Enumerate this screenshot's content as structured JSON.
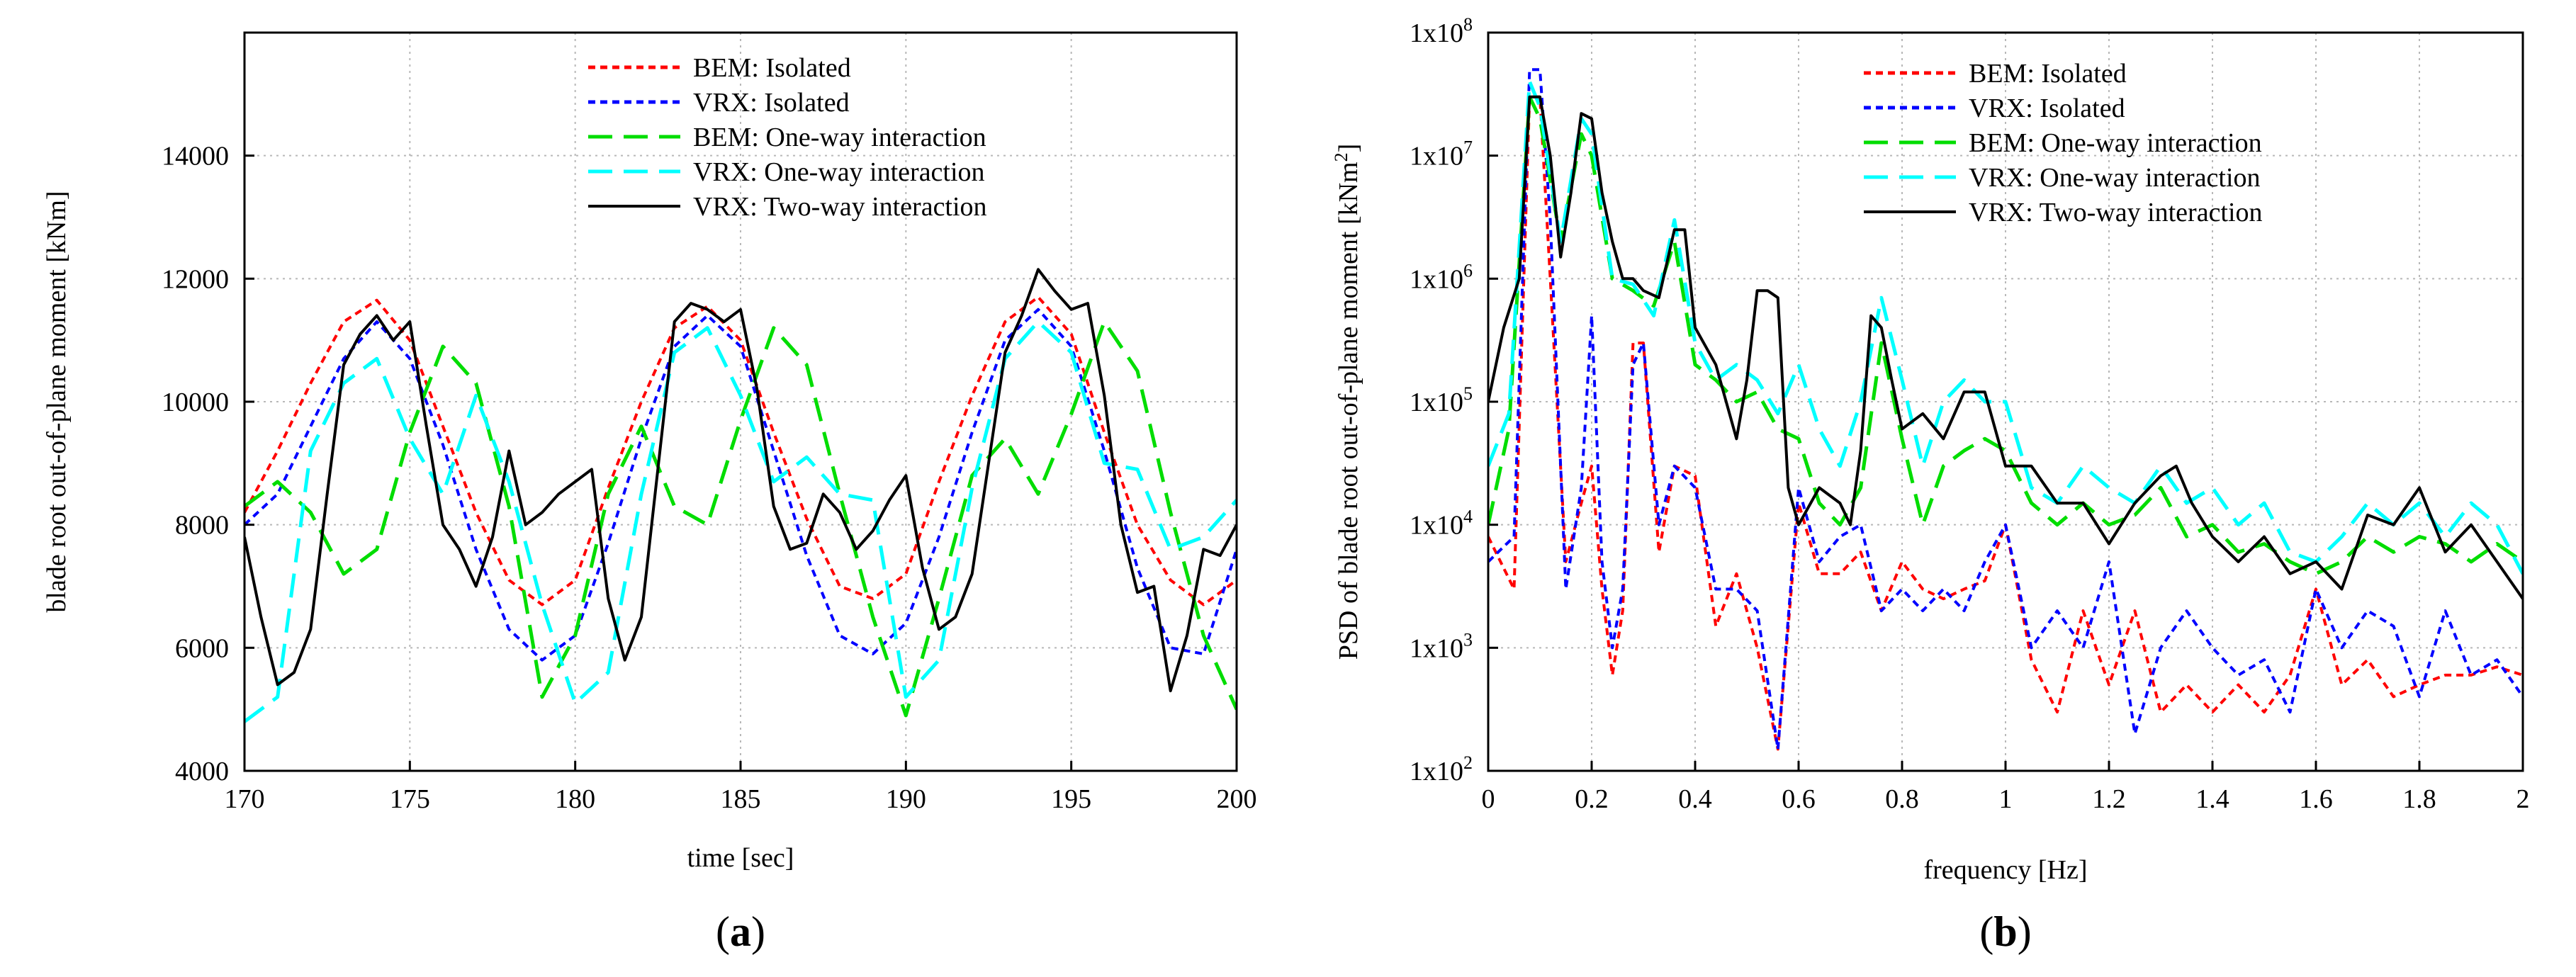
{
  "chart_data": [
    {
      "type": "line",
      "panel_label": "(a)",
      "panel_letter": "a",
      "title": "",
      "xlabel": "time [sec]",
      "ylabel": "blade root out-of-plane moment [kNm]",
      "xlim": [
        170,
        200
      ],
      "ylim": [
        4000,
        16000
      ],
      "x_ticks": [
        170,
        175,
        180,
        185,
        190,
        195,
        200
      ],
      "y_ticks": [
        4000,
        6000,
        8000,
        10000,
        12000,
        14000
      ],
      "grid": true,
      "legend_position": "top-center",
      "series": [
        {
          "name": "BEM: Isolated",
          "color": "#ff0000",
          "style": "dotted",
          "x": [
            170,
            171,
            172,
            173,
            174,
            175,
            176,
            177,
            178,
            179,
            180,
            181,
            182,
            183,
            184,
            185,
            186,
            187,
            188,
            189,
            190,
            191,
            192,
            193,
            194,
            195,
            196,
            197,
            198,
            199,
            200
          ],
          "y": [
            8200,
            9200,
            10300,
            11300,
            11650,
            11000,
            9600,
            8200,
            7100,
            6700,
            7100,
            8600,
            10000,
            11200,
            11550,
            11000,
            9500,
            8100,
            7000,
            6800,
            7200,
            8700,
            10100,
            11300,
            11700,
            11100,
            9500,
            8000,
            7100,
            6700,
            7100
          ]
        },
        {
          "name": "VRX: Isolated",
          "color": "#0000ff",
          "style": "dotted",
          "x": [
            170,
            171,
            172,
            173,
            174,
            175,
            176,
            177,
            178,
            179,
            180,
            181,
            182,
            183,
            184,
            185,
            186,
            187,
            188,
            189,
            190,
            191,
            192,
            193,
            194,
            195,
            196,
            197,
            198,
            199,
            200
          ],
          "y": [
            8000,
            8500,
            9600,
            10700,
            11300,
            10700,
            9300,
            7600,
            6300,
            5800,
            6200,
            7700,
            9400,
            10900,
            11400,
            10900,
            9200,
            7500,
            6200,
            5900,
            6400,
            7800,
            9500,
            11000,
            11500,
            10900,
            9200,
            7300,
            6000,
            5900,
            7600
          ]
        },
        {
          "name": "BEM: One-way interaction",
          "color": "#00dd00",
          "style": "dashed",
          "x": [
            170,
            171,
            172,
            173,
            174,
            175,
            176,
            177,
            178,
            179,
            180,
            181,
            182,
            183,
            184,
            185,
            186,
            187,
            188,
            189,
            190,
            191,
            192,
            193,
            194,
            195,
            196,
            197,
            198,
            199,
            200
          ],
          "y": [
            8300,
            8700,
            8200,
            7200,
            7600,
            9500,
            10900,
            10300,
            8300,
            5200,
            6200,
            8500,
            9600,
            8300,
            8000,
            9700,
            11200,
            10600,
            8500,
            6500,
            4900,
            6800,
            8800,
            9400,
            8500,
            9800,
            11300,
            10500,
            8200,
            6200,
            5000
          ]
        },
        {
          "name": "VRX: One-way interaction",
          "color": "#00ffff",
          "style": "dashed",
          "x": [
            170,
            171,
            172,
            173,
            174,
            175,
            176,
            177,
            178,
            179,
            180,
            181,
            182,
            183,
            184,
            185,
            186,
            187,
            188,
            189,
            190,
            191,
            192,
            193,
            194,
            195,
            196,
            197,
            198,
            199,
            200
          ],
          "y": [
            4800,
            5200,
            9200,
            10300,
            10700,
            9400,
            8500,
            10100,
            8700,
            6700,
            5100,
            5600,
            8500,
            10800,
            11200,
            10100,
            8700,
            9100,
            8500,
            8400,
            5200,
            5800,
            8600,
            10700,
            11300,
            10800,
            9000,
            8900,
            7600,
            7800,
            8400
          ]
        },
        {
          "name": "VRX: Two-way interaction",
          "color": "#000000",
          "style": "solid",
          "x": [
            170,
            170.5,
            171,
            171.5,
            172,
            172.5,
            173,
            173.5,
            174,
            174.5,
            175,
            175.5,
            176,
            176.5,
            177,
            177.5,
            178,
            178.5,
            179,
            179.5,
            180,
            180.5,
            181,
            181.5,
            182,
            182.5,
            183,
            183.5,
            184,
            184.5,
            185,
            185.5,
            186,
            186.5,
            187,
            187.5,
            188,
            188.5,
            189,
            189.5,
            190,
            190.5,
            191,
            191.5,
            192,
            192.5,
            193,
            193.5,
            194,
            194.5,
            195,
            195.5,
            196,
            196.5,
            197,
            197.5,
            198,
            198.5,
            199,
            199.5,
            200
          ],
          "y": [
            7800,
            6500,
            5400,
            5600,
            6300,
            8500,
            10600,
            11100,
            11400,
            11000,
            11300,
            9600,
            8000,
            7600,
            7000,
            7800,
            9200,
            8000,
            8200,
            8500,
            8700,
            8900,
            6800,
            5800,
            6500,
            8900,
            11300,
            11600,
            11500,
            11300,
            11500,
            10200,
            8300,
            7600,
            7700,
            8500,
            8200,
            7600,
            7900,
            8400,
            8800,
            7300,
            6300,
            6500,
            7200,
            9000,
            10800,
            11400,
            12150,
            11800,
            11500,
            11600,
            10100,
            8000,
            6900,
            7000,
            5300,
            6200,
            7600,
            7500,
            8000
          ]
        }
      ]
    },
    {
      "type": "line",
      "panel_label": "(b)",
      "panel_letter": "b",
      "title": "",
      "xlabel": "frequency [Hz]",
      "ylabel": "PSD of blade root out-of-plane moment [kNm",
      "ylabel_superscript": "2",
      "ylabel_suffix": "]",
      "y_scale": "log",
      "xlim": [
        0,
        2
      ],
      "ylim": [
        100,
        100000000
      ],
      "x_ticks": [
        0,
        0.2,
        0.4,
        0.6,
        0.8,
        1,
        1.2,
        1.4,
        1.6,
        1.8,
        2
      ],
      "x_tick_labels": [
        "0",
        "0.2",
        "0.4",
        "0.6",
        "0.8",
        "1",
        "1.2",
        "1.4",
        "1.6",
        "1.8",
        "2"
      ],
      "y_ticks": [
        100,
        1000,
        10000,
        100000,
        1000000,
        10000000,
        100000000
      ],
      "y_tick_base": "1x10",
      "y_tick_exponents": [
        "2",
        "3",
        "4",
        "5",
        "6",
        "7",
        "8"
      ],
      "grid": true,
      "legend_position": "top-center",
      "series": [
        {
          "name": "BEM: Isolated",
          "color": "#ff0000",
          "style": "dotted",
          "x": [
            0,
            0.05,
            0.08,
            0.1,
            0.12,
            0.15,
            0.18,
            0.2,
            0.22,
            0.24,
            0.26,
            0.28,
            0.3,
            0.33,
            0.36,
            0.4,
            0.44,
            0.48,
            0.52,
            0.56,
            0.6,
            0.64,
            0.68,
            0.72,
            0.76,
            0.8,
            0.84,
            0.88,
            0.92,
            0.96,
            1,
            1.05,
            1.1,
            1.15,
            1.2,
            1.25,
            1.3,
            1.35,
            1.4,
            1.45,
            1.5,
            1.55,
            1.6,
            1.65,
            1.7,
            1.75,
            1.8,
            1.85,
            1.9,
            1.95,
            2
          ],
          "y": [
            8000,
            3000,
            30000000,
            30000000,
            1000000,
            5000,
            15000,
            30000,
            3000,
            600,
            2000,
            300000,
            300000,
            6000,
            30000,
            25000,
            1500,
            4000,
            1000,
            150,
            15000,
            4000,
            4000,
            6000,
            2000,
            5000,
            3000,
            2500,
            3000,
            3500,
            10000,
            800,
            300,
            2000,
            500,
            2000,
            300,
            500,
            300,
            500,
            300,
            600,
            3000,
            500,
            800,
            400,
            500,
            600,
            600,
            700,
            600
          ]
        },
        {
          "name": "VRX: Isolated",
          "color": "#0000ff",
          "style": "dotted",
          "x": [
            0,
            0.05,
            0.08,
            0.1,
            0.12,
            0.15,
            0.18,
            0.2,
            0.22,
            0.24,
            0.26,
            0.28,
            0.3,
            0.33,
            0.36,
            0.4,
            0.44,
            0.48,
            0.52,
            0.56,
            0.6,
            0.64,
            0.68,
            0.72,
            0.76,
            0.8,
            0.84,
            0.88,
            0.92,
            0.96,
            1,
            1.05,
            1.1,
            1.15,
            1.2,
            1.25,
            1.3,
            1.35,
            1.4,
            1.45,
            1.5,
            1.55,
            1.6,
            1.65,
            1.7,
            1.75,
            1.8,
            1.85,
            1.9,
            1.95,
            2
          ],
          "y": [
            5000,
            8000,
            50000000,
            50000000,
            3000000,
            3000,
            20000,
            500000,
            5000,
            1000,
            3000,
            200000,
            300000,
            10000,
            30000,
            20000,
            3000,
            3000,
            2000,
            150,
            20000,
            5000,
            8000,
            10000,
            2000,
            3000,
            2000,
            3000,
            2000,
            5000,
            10000,
            1000,
            2000,
            1000,
            5000,
            200,
            1000,
            2000,
            1000,
            600,
            800,
            300,
            3000,
            1000,
            2000,
            1500,
            400,
            2000,
            600,
            800,
            400
          ]
        },
        {
          "name": "BEM: One-way interaction",
          "color": "#00dd00",
          "style": "dashed",
          "x": [
            0,
            0.04,
            0.08,
            0.1,
            0.14,
            0.18,
            0.2,
            0.24,
            0.28,
            0.32,
            0.36,
            0.4,
            0.44,
            0.48,
            0.52,
            0.56,
            0.6,
            0.64,
            0.68,
            0.72,
            0.76,
            0.8,
            0.84,
            0.88,
            0.92,
            0.96,
            1,
            1.05,
            1.1,
            1.15,
            1.2,
            1.25,
            1.3,
            1.35,
            1.4,
            1.45,
            1.5,
            1.55,
            1.6,
            1.65,
            1.7,
            1.75,
            1.8,
            1.85,
            1.9,
            1.95,
            2
          ],
          "y": [
            10000,
            60000,
            30000000,
            20000000,
            2000000,
            15000000,
            10000000,
            1000000,
            800000,
            600000,
            2000000,
            200000,
            150000,
            100000,
            120000,
            60000,
            50000,
            15000,
            10000,
            20000,
            300000,
            50000,
            10000,
            30000,
            40000,
            50000,
            40000,
            15000,
            10000,
            15000,
            10000,
            12000,
            20000,
            8000,
            10000,
            6000,
            7000,
            5000,
            4000,
            5000,
            8000,
            6000,
            8000,
            7000,
            5000,
            7000,
            5000
          ]
        },
        {
          "name": "VRX: One-way interaction",
          "color": "#00ffff",
          "style": "dashed",
          "x": [
            0,
            0.04,
            0.08,
            0.1,
            0.14,
            0.18,
            0.2,
            0.24,
            0.28,
            0.32,
            0.36,
            0.4,
            0.44,
            0.48,
            0.52,
            0.56,
            0.6,
            0.64,
            0.68,
            0.72,
            0.76,
            0.8,
            0.84,
            0.88,
            0.92,
            0.96,
            1,
            1.05,
            1.1,
            1.15,
            1.2,
            1.25,
            1.3,
            1.35,
            1.4,
            1.45,
            1.5,
            1.55,
            1.6,
            1.65,
            1.7,
            1.75,
            1.8,
            1.85,
            1.9,
            1.95,
            2
          ],
          "y": [
            30000,
            80000,
            40000000,
            25000000,
            2000000,
            20000000,
            15000000,
            1000000,
            900000,
            500000,
            3000000,
            300000,
            150000,
            200000,
            150000,
            80000,
            200000,
            60000,
            30000,
            100000,
            700000,
            150000,
            30000,
            100000,
            150000,
            100000,
            100000,
            20000,
            15000,
            30000,
            20000,
            15000,
            30000,
            15000,
            20000,
            10000,
            15000,
            6000,
            5000,
            8000,
            15000,
            10000,
            15000,
            8000,
            15000,
            10000,
            4000
          ]
        },
        {
          "name": "VRX: Two-way interaction",
          "color": "#000000",
          "style": "solid",
          "x": [
            0,
            0.03,
            0.06,
            0.08,
            0.1,
            0.12,
            0.14,
            0.16,
            0.18,
            0.2,
            0.22,
            0.24,
            0.26,
            0.28,
            0.3,
            0.33,
            0.36,
            0.38,
            0.4,
            0.44,
            0.48,
            0.5,
            0.52,
            0.54,
            0.56,
            0.58,
            0.6,
            0.64,
            0.68,
            0.7,
            0.72,
            0.74,
            0.76,
            0.78,
            0.8,
            0.84,
            0.88,
            0.92,
            0.96,
            1,
            1.05,
            1.1,
            1.15,
            1.2,
            1.25,
            1.3,
            1.33,
            1.36,
            1.4,
            1.45,
            1.5,
            1.55,
            1.6,
            1.65,
            1.7,
            1.75,
            1.8,
            1.85,
            1.9,
            1.95,
            2
          ],
          "y": [
            100000,
            400000,
            1000000,
            30000000,
            30000000,
            10000000,
            1500000,
            5000000,
            22000000,
            20000000,
            5000000,
            2000000,
            1000000,
            1000000,
            800000,
            700000,
            2500000,
            2500000,
            400000,
            200000,
            50000,
            150000,
            800000,
            800000,
            700000,
            20000,
            10000,
            20000,
            15000,
            10000,
            40000,
            500000,
            400000,
            150000,
            60000,
            80000,
            50000,
            120000,
            120000,
            30000,
            30000,
            15000,
            15000,
            7000,
            15000,
            25000,
            30000,
            15000,
            8000,
            5000,
            8000,
            4000,
            5000,
            3000,
            12000,
            10000,
            20000,
            6000,
            10000,
            5000,
            2500
          ]
        }
      ]
    }
  ]
}
